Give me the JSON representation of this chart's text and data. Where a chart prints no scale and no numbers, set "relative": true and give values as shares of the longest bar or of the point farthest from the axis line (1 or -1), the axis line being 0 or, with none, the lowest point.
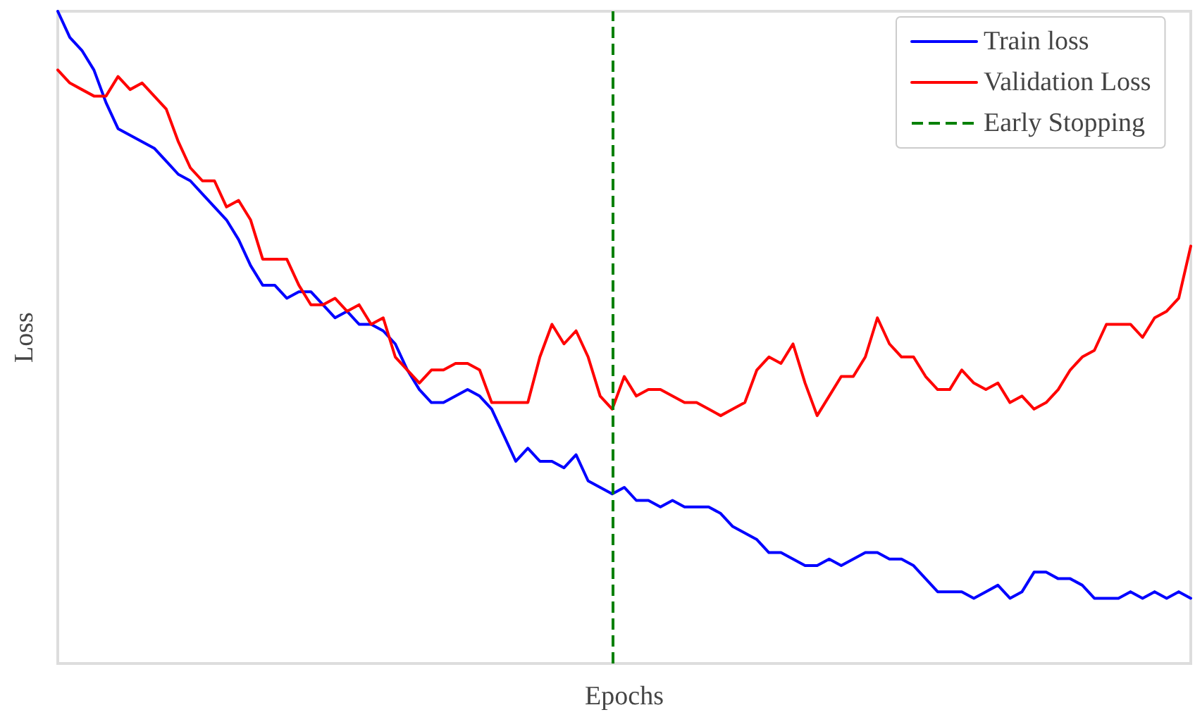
{
  "chart_data": {
    "type": "line",
    "relative": true,
    "xlabel": "Epochs",
    "ylabel": "Loss",
    "legend": "top right",
    "grid": false,
    "marker": "none",
    "line_style": "solid",
    "categories": [
      null,
      null,
      null,
      null,
      null,
      null,
      null,
      null,
      null,
      null,
      null,
      null,
      null,
      null,
      null,
      null,
      null,
      null,
      null,
      null,
      null,
      null,
      null,
      null,
      null,
      null,
      null,
      null,
      null,
      null,
      null,
      null,
      null,
      null,
      null,
      null,
      null,
      null,
      null,
      null,
      null,
      null,
      null,
      null,
      null,
      null,
      null,
      null,
      null,
      null,
      null,
      null,
      null,
      null,
      null,
      null,
      null,
      null,
      null,
      null,
      null,
      null,
      null,
      null,
      null,
      null,
      null,
      null,
      null,
      null,
      null,
      null,
      null,
      null,
      null,
      null,
      null,
      null,
      null,
      null,
      null,
      null,
      null,
      null,
      null,
      null,
      null,
      null,
      null,
      null,
      null,
      null,
      null,
      null,
      null
    ],
    "series": [
      {
        "name": "Train loss",
        "color": "#0000ff",
        "values": [
          1.0,
          0.96,
          0.94,
          0.91,
          0.86,
          0.82,
          0.81,
          0.8,
          0.79,
          0.77,
          0.75,
          0.74,
          0.72,
          0.7,
          0.68,
          0.65,
          0.61,
          0.58,
          0.58,
          0.56,
          0.57,
          0.57,
          0.55,
          0.53,
          0.54,
          0.52,
          0.52,
          0.51,
          0.49,
          0.45,
          0.42,
          0.4,
          0.4,
          0.41,
          0.42,
          0.41,
          0.39,
          0.35,
          0.31,
          0.33,
          0.31,
          0.31,
          0.3,
          0.32,
          0.28,
          0.27,
          0.26,
          0.27,
          0.25,
          0.25,
          0.24,
          0.25,
          0.24,
          0.24,
          0.24,
          0.23,
          0.21,
          0.2,
          0.19,
          0.17,
          0.17,
          0.16,
          0.15,
          0.15,
          0.16,
          0.15,
          0.16,
          0.17,
          0.17,
          0.16,
          0.16,
          0.15,
          0.13,
          0.11,
          0.11,
          0.11,
          0.1,
          0.11,
          0.12,
          0.1,
          0.11,
          0.14,
          0.14,
          0.13,
          0.13,
          0.12,
          0.1,
          0.1,
          0.1,
          0.11,
          0.1,
          0.11,
          0.1,
          0.11,
          0.1
        ]
      },
      {
        "name": "Validation Loss",
        "color": "#ff0000",
        "values": [
          0.91,
          0.89,
          0.88,
          0.87,
          0.87,
          0.9,
          0.88,
          0.89,
          0.87,
          0.85,
          0.8,
          0.76,
          0.74,
          0.74,
          0.7,
          0.71,
          0.68,
          0.62,
          0.62,
          0.62,
          0.58,
          0.55,
          0.55,
          0.56,
          0.54,
          0.55,
          0.52,
          0.53,
          0.47,
          0.45,
          0.43,
          0.45,
          0.45,
          0.46,
          0.46,
          0.45,
          0.4,
          0.4,
          0.4,
          0.4,
          0.47,
          0.52,
          0.49,
          0.51,
          0.47,
          0.41,
          0.39,
          0.44,
          0.41,
          0.42,
          0.42,
          0.41,
          0.4,
          0.4,
          0.39,
          0.38,
          0.39,
          0.4,
          0.45,
          0.47,
          0.46,
          0.49,
          0.43,
          0.38,
          0.41,
          0.44,
          0.44,
          0.47,
          0.53,
          0.49,
          0.47,
          0.47,
          0.44,
          0.42,
          0.42,
          0.45,
          0.43,
          0.42,
          0.43,
          0.4,
          0.41,
          0.39,
          0.4,
          0.42,
          0.45,
          0.47,
          0.48,
          0.52,
          0.52,
          0.52,
          0.5,
          0.53,
          0.54,
          0.56,
          0.64
        ]
      }
    ],
    "ref_lines": [
      {
        "axis": "x",
        "label": "Early Stopping",
        "color": "#008000",
        "line_style": "dashed"
      }
    ]
  }
}
